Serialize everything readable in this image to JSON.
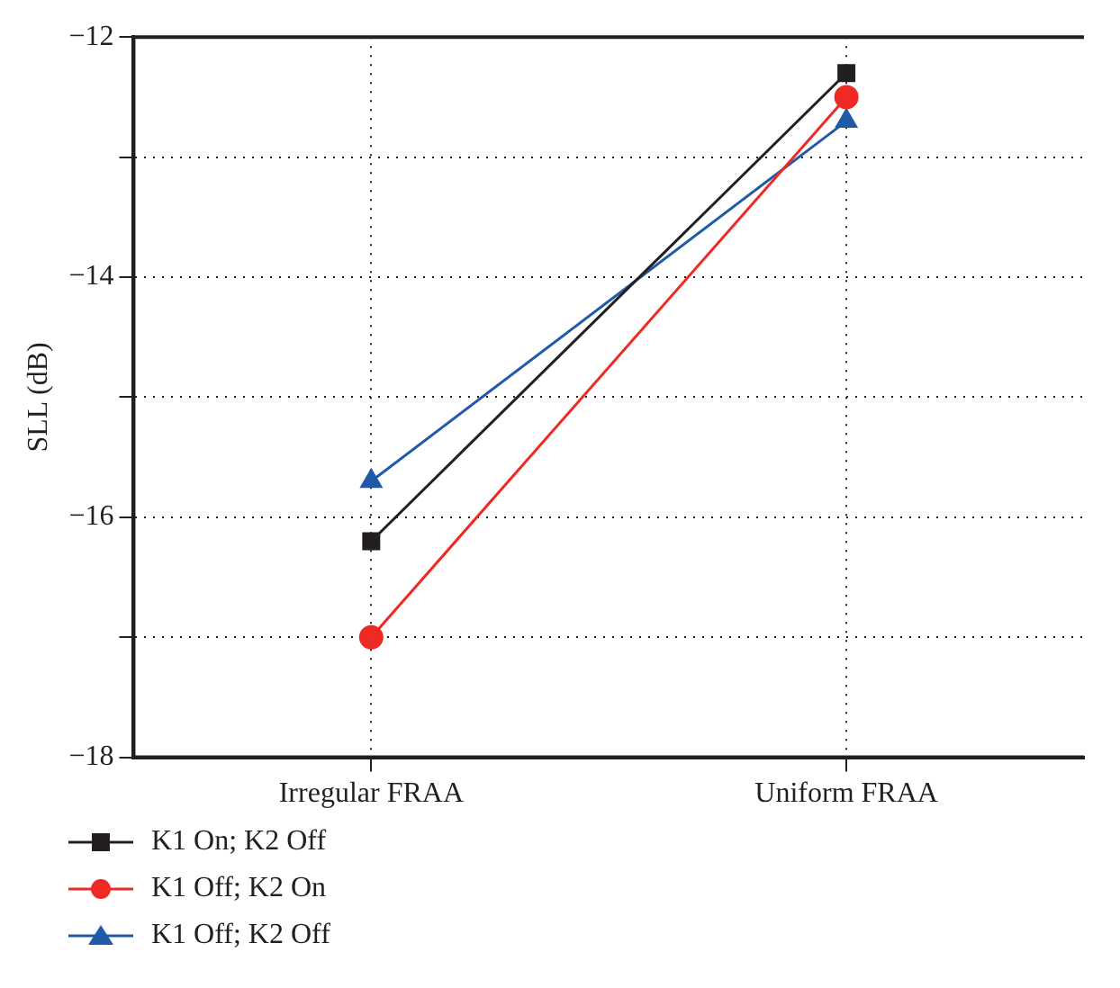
{
  "chart_data": {
    "type": "line",
    "ylabel": "SLL (dB)",
    "categories": [
      "Irregular FRAA",
      "Uniform FRAA"
    ],
    "series": [
      {
        "name": "K1 On; K2 Off",
        "color": "#231f20",
        "marker": "square",
        "values": [
          -16.2,
          -12.3
        ]
      },
      {
        "name": "K1 Off; K2 On",
        "color": "#ee2a24",
        "marker": "circle",
        "values": [
          -17,
          -12.5
        ]
      },
      {
        "name": "K1 Off; K2 Off",
        "color": "#1f5aa8",
        "marker": "triangle",
        "values": [
          -15.7,
          -12.7
        ]
      }
    ],
    "ylim": [
      -18,
      -12
    ],
    "yticks": [
      {
        "value": -18,
        "label": "−18"
      },
      {
        "value": -17,
        "label": null
      },
      {
        "value": -16,
        "label": "−16"
      },
      {
        "value": -15,
        "label": null
      },
      {
        "value": -14,
        "label": "−14"
      },
      {
        "value": -13,
        "label": null
      },
      {
        "value": -12,
        "label": "−12"
      }
    ],
    "grid": true,
    "legend": "bottom left",
    "line_style": "solid"
  }
}
